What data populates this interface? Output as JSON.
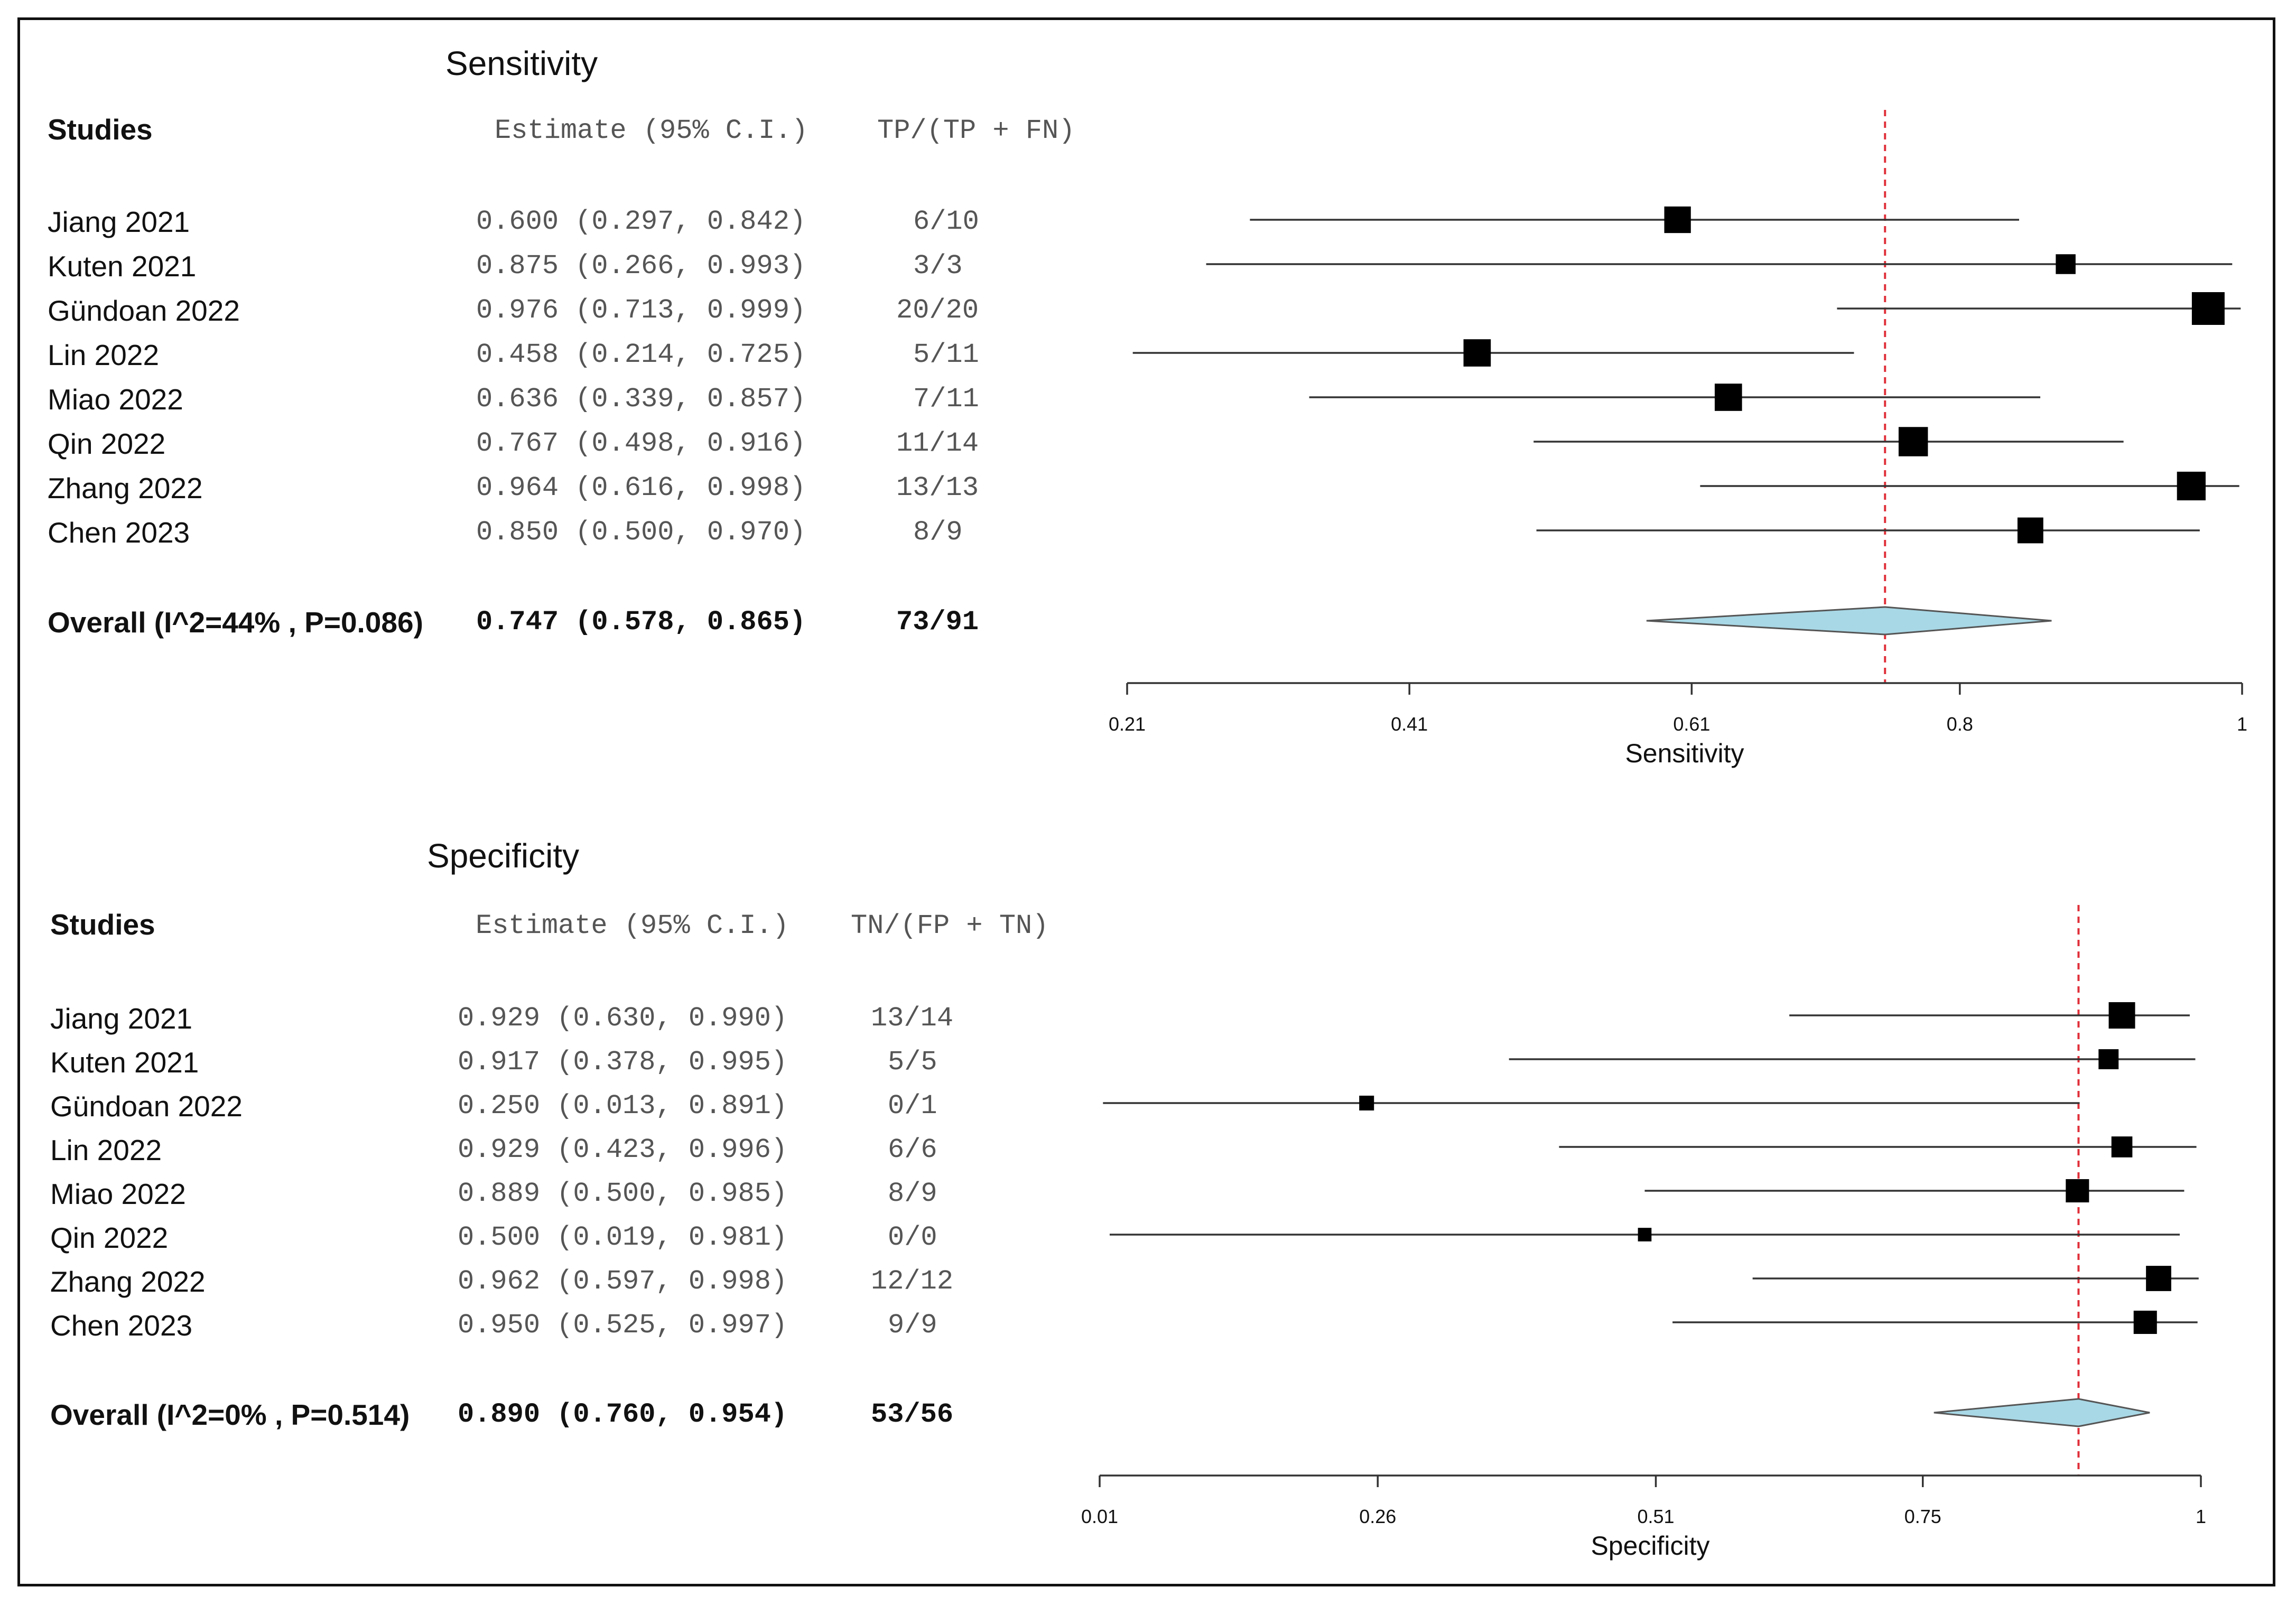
{
  "chart_data": [
    {
      "type": "forest",
      "title": "Sensitivity",
      "studies_header": "Studies",
      "estimate_header": "Estimate (95% C.I.)",
      "count_header": "TP/(TP + FN)",
      "xlabel": "Sensitivity",
      "xlim": [
        0.21,
        1.0
      ],
      "ticks": [
        "0.21",
        "0.41",
        "0.61",
        "0.8",
        "1"
      ],
      "tick_values": [
        0.21,
        0.41,
        0.61,
        0.8,
        1.0
      ],
      "reference_line": 0.747,
      "studies": [
        {
          "name": "Jiang 2021",
          "estimate": 0.6,
          "lower": 0.297,
          "upper": 0.842,
          "est_text": "0.600 (0.297, 0.842)",
          "count": "6/10",
          "weight": 10
        },
        {
          "name": "Kuten 2021",
          "estimate": 0.875,
          "lower": 0.266,
          "upper": 0.993,
          "est_text": "0.875 (0.266, 0.993)",
          "count": "3/3",
          "weight": 3
        },
        {
          "name": "Gündoan 2022",
          "estimate": 0.976,
          "lower": 0.713,
          "upper": 0.999,
          "est_text": "0.976 (0.713, 0.999)",
          "count": "20/20",
          "weight": 20
        },
        {
          "name": "Lin 2022",
          "estimate": 0.458,
          "lower": 0.214,
          "upper": 0.725,
          "est_text": "0.458 (0.214, 0.725)",
          "count": "5/11",
          "weight": 11
        },
        {
          "name": "Miao 2022",
          "estimate": 0.636,
          "lower": 0.339,
          "upper": 0.857,
          "est_text": "0.636 (0.339, 0.857)",
          "count": "7/11",
          "weight": 11
        },
        {
          "name": "Qin 2022",
          "estimate": 0.767,
          "lower": 0.498,
          "upper": 0.916,
          "est_text": "0.767 (0.498, 0.916)",
          "count": "11/14",
          "weight": 14
        },
        {
          "name": "Zhang 2022",
          "estimate": 0.964,
          "lower": 0.616,
          "upper": 0.998,
          "est_text": "0.964 (0.616, 0.998)",
          "count": "13/13",
          "weight": 13
        },
        {
          "name": "Chen 2023",
          "estimate": 0.85,
          "lower": 0.5,
          "upper": 0.97,
          "est_text": "0.850 (0.500, 0.970)",
          "count": "8/9",
          "weight": 9
        }
      ],
      "overall": {
        "label": "Overall (I^2=44% , P=0.086)",
        "estimate": 0.747,
        "lower": 0.578,
        "upper": 0.865,
        "est_text": "0.747 (0.578, 0.865)",
        "count": "73/91"
      }
    },
    {
      "type": "forest",
      "title": "Specificity",
      "studies_header": "Studies",
      "estimate_header": "Estimate (95% C.I.)",
      "count_header": "TN/(FP + TN)",
      "xlabel": "Specificity",
      "xlim": [
        0.01,
        1.0
      ],
      "ticks": [
        "0.01",
        "0.26",
        "0.51",
        "0.75",
        "1"
      ],
      "tick_values": [
        0.01,
        0.26,
        0.51,
        0.75,
        1.0
      ],
      "reference_line": 0.89,
      "studies": [
        {
          "name": "Jiang 2021",
          "estimate": 0.929,
          "lower": 0.63,
          "upper": 0.99,
          "est_text": "0.929 (0.630, 0.990)",
          "count": "13/14",
          "weight": 14
        },
        {
          "name": "Kuten 2021",
          "estimate": 0.917,
          "lower": 0.378,
          "upper": 0.995,
          "est_text": "0.917 (0.378, 0.995)",
          "count": "5/5",
          "weight": 5
        },
        {
          "name": "Gündoan 2022",
          "estimate": 0.25,
          "lower": 0.013,
          "upper": 0.891,
          "est_text": "0.250 (0.013, 0.891)",
          "count": "0/1",
          "weight": 1
        },
        {
          "name": "Lin 2022",
          "estimate": 0.929,
          "lower": 0.423,
          "upper": 0.996,
          "est_text": "0.929 (0.423, 0.996)",
          "count": "6/6",
          "weight": 6
        },
        {
          "name": "Miao 2022",
          "estimate": 0.889,
          "lower": 0.5,
          "upper": 0.985,
          "est_text": "0.889 (0.500, 0.985)",
          "count": "8/9",
          "weight": 9
        },
        {
          "name": "Qin 2022",
          "estimate": 0.5,
          "lower": 0.019,
          "upper": 0.981,
          "est_text": "0.500 (0.019, 0.981)",
          "count": "0/0",
          "weight": 0.5
        },
        {
          "name": "Zhang 2022",
          "estimate": 0.962,
          "lower": 0.597,
          "upper": 0.998,
          "est_text": "0.962 (0.597, 0.998)",
          "count": "12/12",
          "weight": 12
        },
        {
          "name": "Chen 2023",
          "estimate": 0.95,
          "lower": 0.525,
          "upper": 0.997,
          "est_text": "0.950 (0.525, 0.997)",
          "count": "9/9",
          "weight": 9
        }
      ],
      "overall": {
        "label": "Overall (I^2=0% , P=0.514)",
        "estimate": 0.89,
        "lower": 0.76,
        "upper": 0.954,
        "est_text": "0.890 (0.760, 0.954)",
        "count": "53/56"
      }
    }
  ],
  "colors": {
    "text": "#111111",
    "mono_text": "#555555",
    "marker": "#000000",
    "ci_line": "#333333",
    "reference_line": "#e0303a",
    "diamond_fill": "#a8d8e6",
    "diamond_stroke": "#555555",
    "axis": "#333333"
  }
}
